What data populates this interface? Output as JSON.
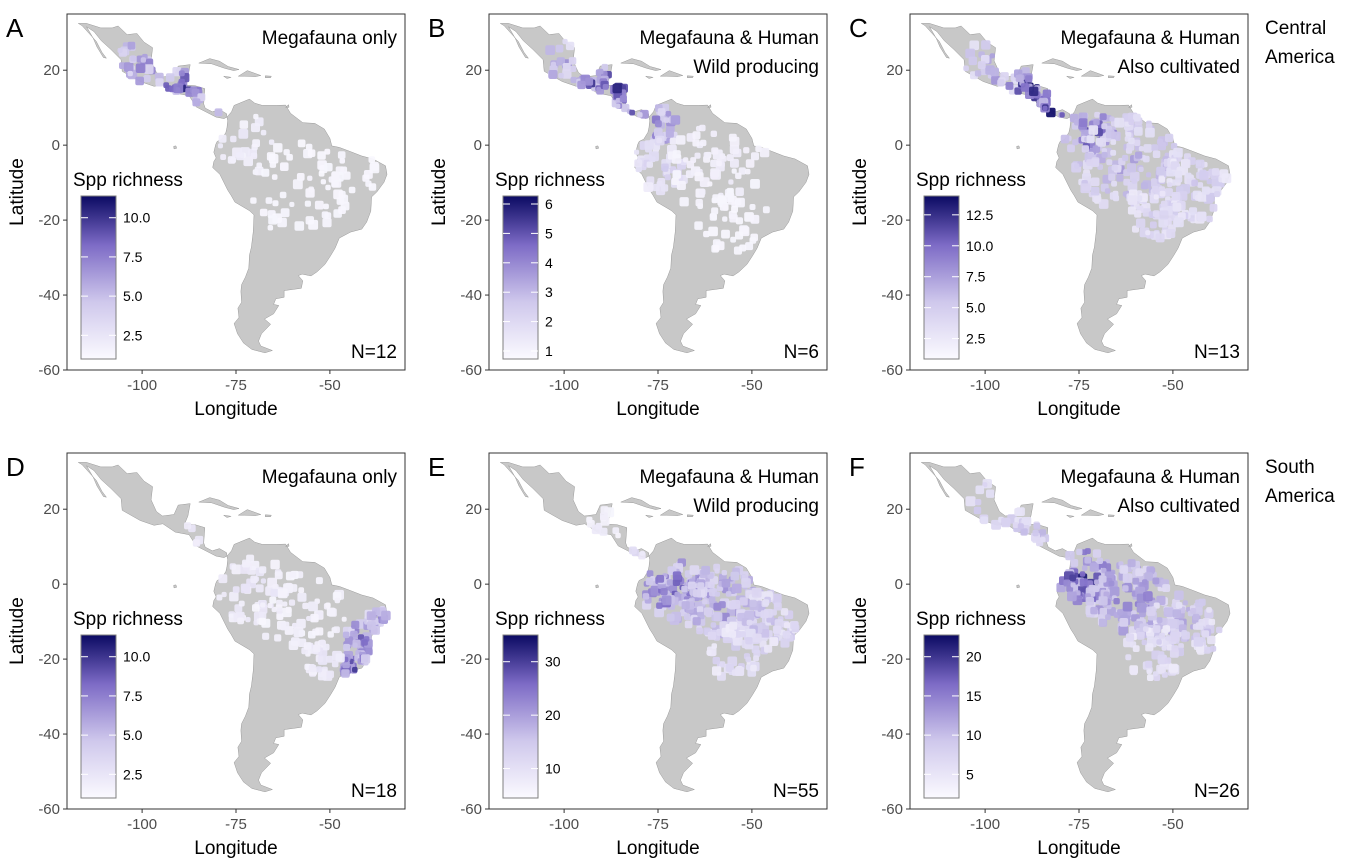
{
  "axis": {
    "xlabel": "Longitude",
    "ylabel": "Latitude",
    "x_ticks": [
      "-100",
      "-75",
      "-50"
    ],
    "y_ticks": [
      "20",
      "0",
      "-20",
      "-40",
      "-60"
    ],
    "xlim": [
      -120,
      -30
    ],
    "ylim": [
      -60,
      35
    ]
  },
  "row_labels": [
    {
      "line1": "Central",
      "line2": "America"
    },
    {
      "line1": "South",
      "line2": "America"
    }
  ],
  "colors": {
    "land": "#c8c8c8",
    "low": "#fbfaff",
    "high": "#0b0a63",
    "panel_border": "#333333"
  },
  "legend_title": "Spp richness",
  "panels": [
    {
      "letter": "A",
      "title_line1": "Megafauna only",
      "title_line2": "",
      "n": "N=12",
      "legend_ticks": [
        "10.0",
        "7.5",
        "5.0",
        "2.5"
      ],
      "hotspot": "central_weak"
    },
    {
      "letter": "B",
      "title_line1": "Megafauna & Human",
      "title_line2": "Wild producing",
      "n": "N=6",
      "legend_ticks": [
        "6",
        "5",
        "4",
        "3",
        "2",
        "1"
      ],
      "hotspot": "central_strong"
    },
    {
      "letter": "C",
      "title_line1": "Megafauna & Human",
      "title_line2": "Also cultivated",
      "n": "N=13",
      "legend_ticks": [
        "12.5",
        "10.0",
        "7.5",
        "5.0",
        "2.5"
      ],
      "hotspot": "central_amazon"
    },
    {
      "letter": "D",
      "title_line1": "Megafauna only",
      "title_line2": "",
      "n": "N=18",
      "legend_ticks": [
        "10.0",
        "7.5",
        "5.0",
        "2.5"
      ],
      "hotspot": "atlantic"
    },
    {
      "letter": "E",
      "title_line1": "Megafauna & Human",
      "title_line2": "Wild producing",
      "n": "N=55",
      "legend_ticks": [
        "30",
        "20",
        "10"
      ],
      "hotspot": "amazon"
    },
    {
      "letter": "F",
      "title_line1": "Megafauna & Human",
      "title_line2": "Also cultivated",
      "n": "N=26",
      "legend_ticks": [
        "20",
        "15",
        "10",
        "5"
      ],
      "hotspot": "amazon_central"
    }
  ]
}
